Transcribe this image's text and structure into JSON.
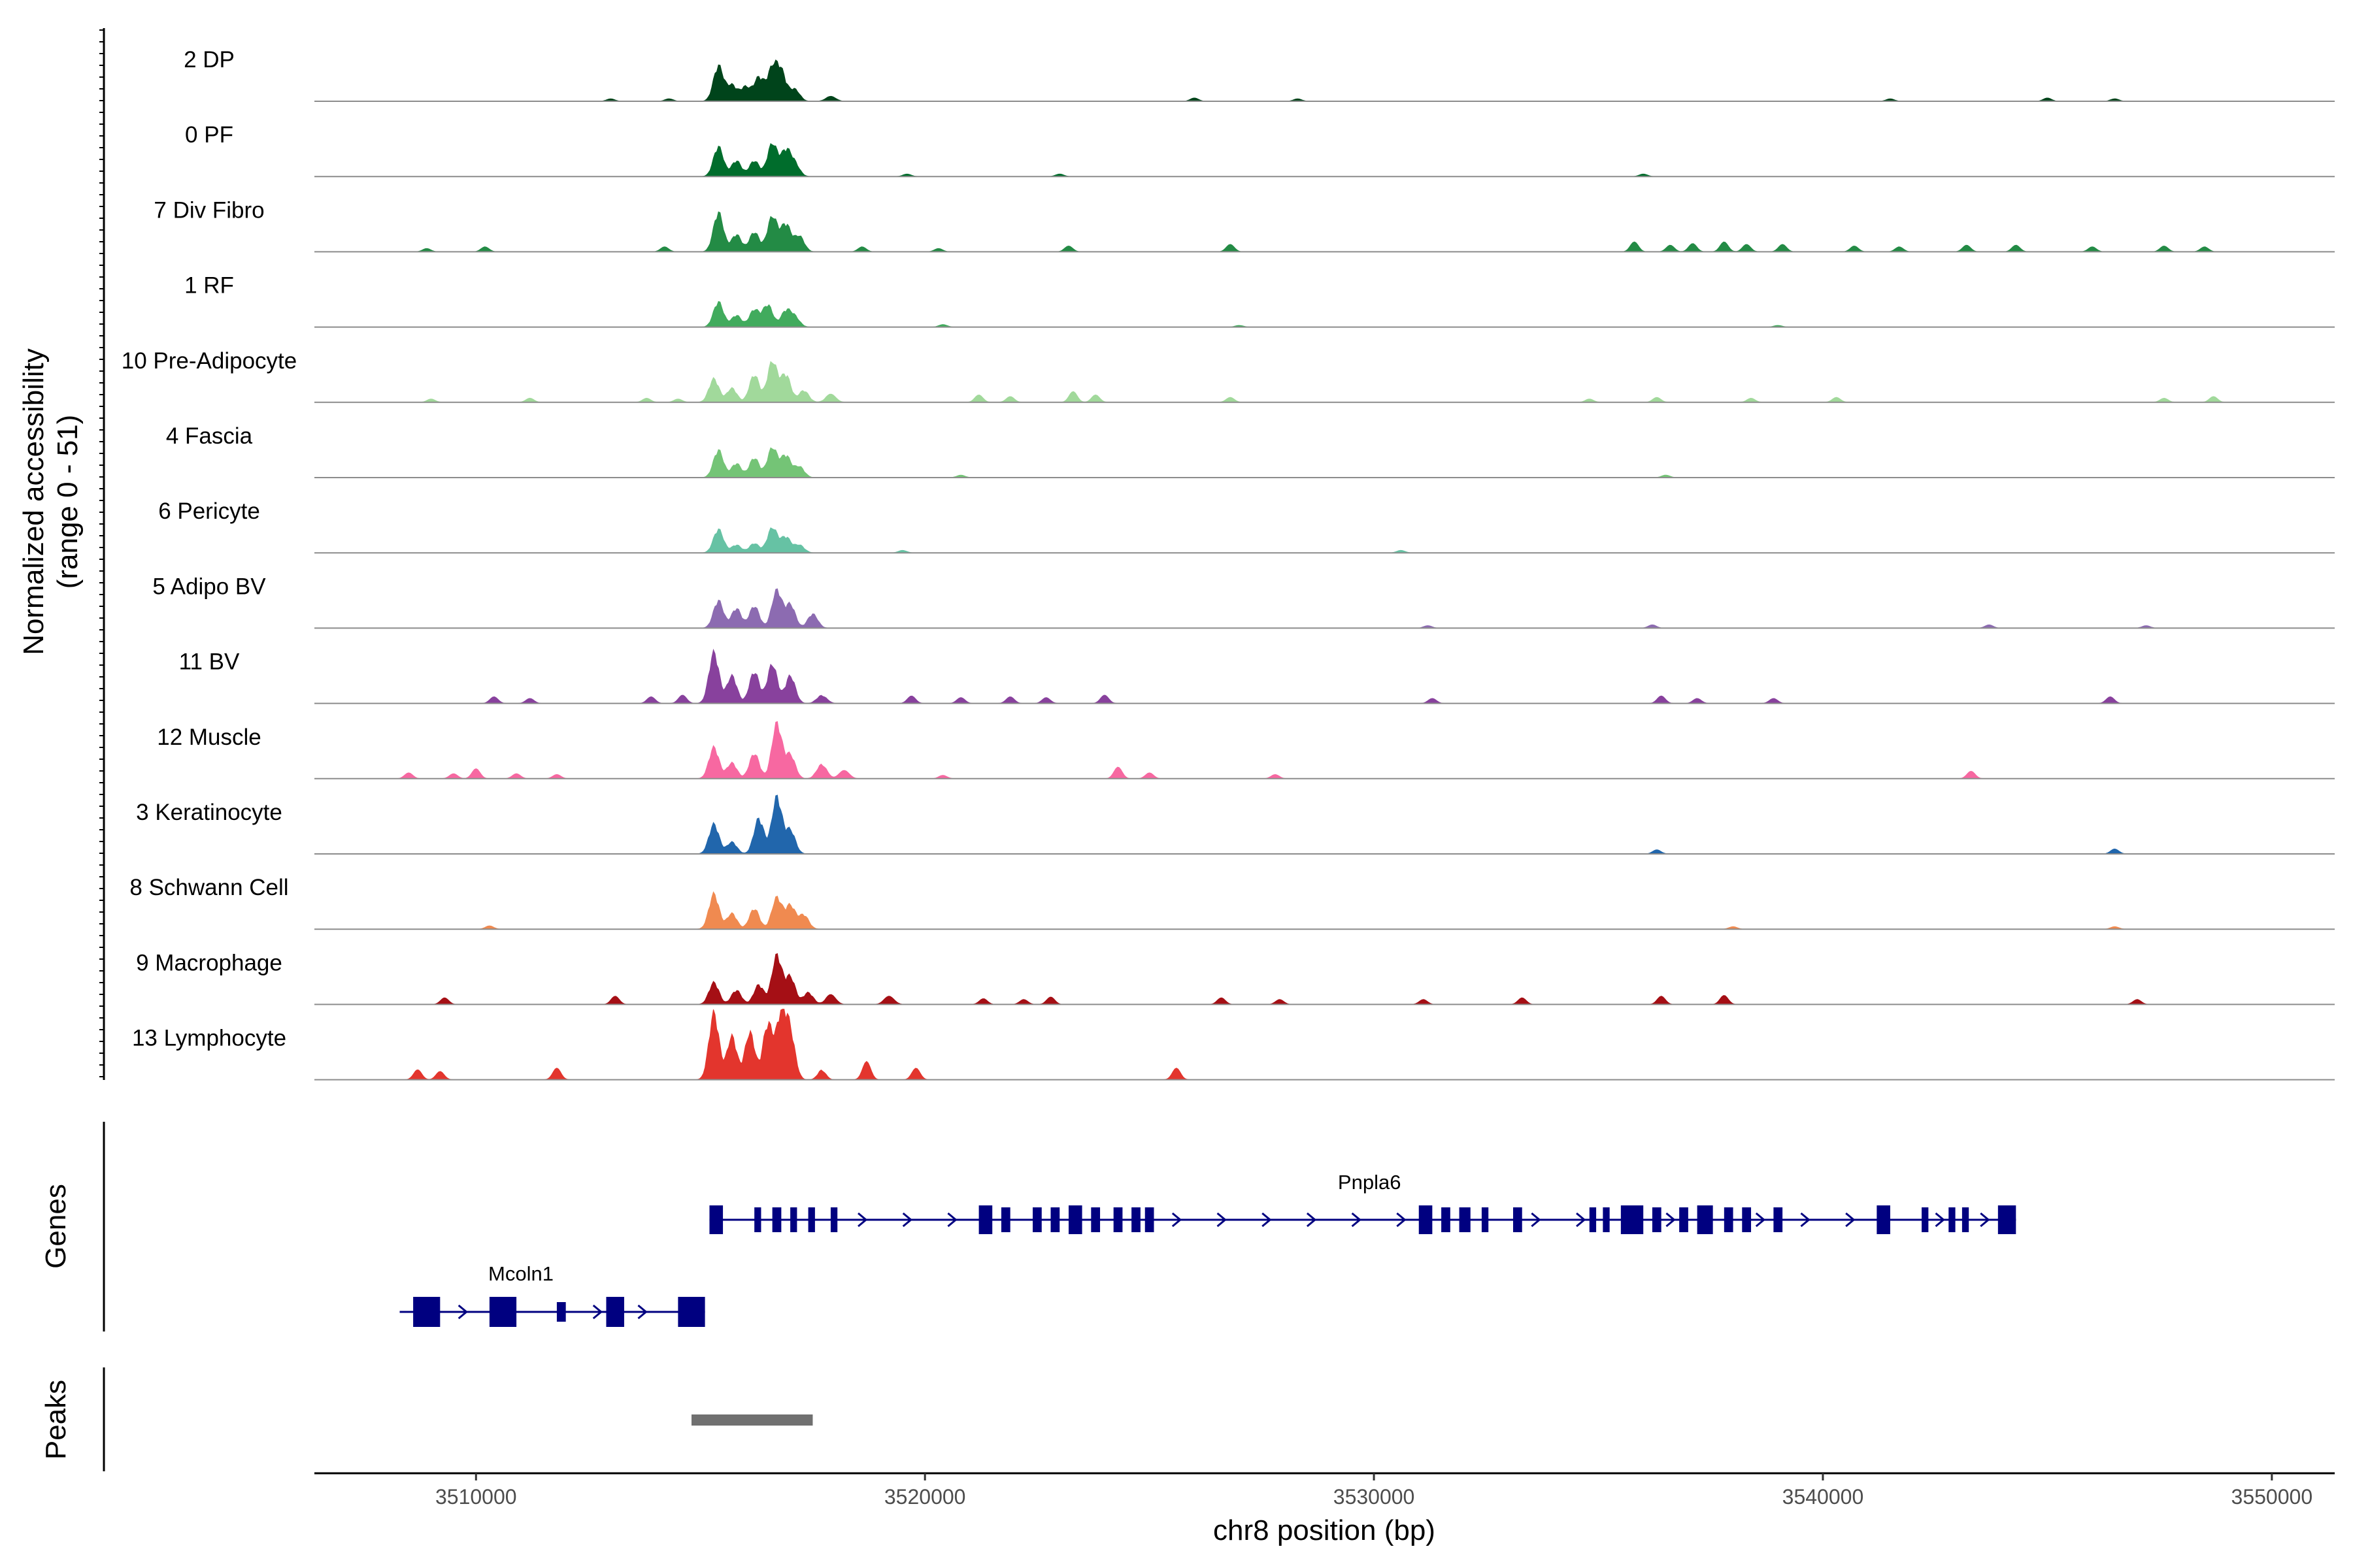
{
  "chart_data": {
    "type": "coverage",
    "title": "",
    "xlabel": "chr8 position (bp)",
    "ylabel": "Normalized accessibility",
    "ylabel_sub": "(range 0 - 51)",
    "y_range": [
      0,
      51
    ],
    "xlim": [
      3506400,
      3551400
    ],
    "x_ticks": [
      3510000,
      3520000,
      3530000,
      3540000,
      3550000
    ],
    "x_tick_labels": [
      "3510000",
      "3520000",
      "3530000",
      "3540000",
      "3550000"
    ],
    "panel_labels": {
      "genes": "Genes",
      "peaks": "Peaks"
    },
    "tracks": [
      {
        "name": "2 DP",
        "color": "#00441b",
        "peaks": [
          [
            3515400,
            45
          ],
          [
            3515700,
            20
          ],
          [
            3516000,
            18
          ],
          [
            3516300,
            30
          ],
          [
            3516600,
            40
          ],
          [
            3516800,
            35
          ],
          [
            3517100,
            15
          ],
          [
            3517900,
            6
          ]
        ],
        "bg": [
          [
            3513000,
            3
          ],
          [
            3514300,
            3
          ],
          [
            3526000,
            4
          ],
          [
            3528300,
            3
          ],
          [
            3541500,
            3
          ],
          [
            3545000,
            4
          ],
          [
            3546500,
            3
          ]
        ]
      },
      {
        "name": "0 PF",
        "color": "#006d2c",
        "peaks": [
          [
            3515400,
            38
          ],
          [
            3515800,
            20
          ],
          [
            3516200,
            20
          ],
          [
            3516600,
            42
          ],
          [
            3516900,
            32
          ],
          [
            3517100,
            15
          ]
        ],
        "bg": [
          [
            3519600,
            3
          ],
          [
            3523000,
            3
          ],
          [
            3536000,
            3
          ]
        ]
      },
      {
        "name": "7 Div Fibro",
        "color": "#238b45",
        "peaks": [
          [
            3515400,
            50
          ],
          [
            3515800,
            22
          ],
          [
            3516200,
            25
          ],
          [
            3516600,
            45
          ],
          [
            3516900,
            35
          ],
          [
            3517200,
            20
          ]
        ],
        "bg": [
          [
            3508900,
            4
          ],
          [
            3510200,
            6
          ],
          [
            3514200,
            6
          ],
          [
            3518600,
            6
          ],
          [
            3520300,
            4
          ],
          [
            3523200,
            7
          ],
          [
            3526800,
            9
          ],
          [
            3535800,
            12
          ],
          [
            3536600,
            8
          ],
          [
            3537100,
            10
          ],
          [
            3537800,
            12
          ],
          [
            3538300,
            9
          ],
          [
            3539100,
            9
          ],
          [
            3540700,
            7
          ],
          [
            3541700,
            6
          ],
          [
            3543200,
            8
          ],
          [
            3544300,
            8
          ],
          [
            3546000,
            6
          ],
          [
            3547600,
            7
          ],
          [
            3548500,
            6
          ]
        ]
      },
      {
        "name": "1 RF",
        "color": "#41ab5d",
        "peaks": [
          [
            3515400,
            32
          ],
          [
            3515800,
            15
          ],
          [
            3516200,
            22
          ],
          [
            3516500,
            28
          ],
          [
            3516900,
            20
          ],
          [
            3517100,
            12
          ]
        ],
        "bg": [
          [
            3520400,
            3
          ],
          [
            3527000,
            2
          ],
          [
            3539000,
            2
          ]
        ]
      },
      {
        "name": "10 Pre-Adipocyte",
        "color": "#a1d99b",
        "peaks": [
          [
            3515300,
            30
          ],
          [
            3515700,
            18
          ],
          [
            3516200,
            35
          ],
          [
            3516600,
            52
          ],
          [
            3516900,
            35
          ],
          [
            3517300,
            15
          ],
          [
            3517900,
            10
          ]
        ],
        "bg": [
          [
            3509000,
            4
          ],
          [
            3511200,
            5
          ],
          [
            3513800,
            5
          ],
          [
            3514500,
            4
          ],
          [
            3521200,
            9
          ],
          [
            3521900,
            7
          ],
          [
            3523300,
            13
          ],
          [
            3523800,
            9
          ],
          [
            3526800,
            6
          ],
          [
            3534800,
            4
          ],
          [
            3536300,
            6
          ],
          [
            3538400,
            5
          ],
          [
            3540300,
            6
          ],
          [
            3547600,
            5
          ],
          [
            3548700,
            7
          ]
        ]
      },
      {
        "name": "4 Fascia",
        "color": "#74c476",
        "peaks": [
          [
            3515400,
            35
          ],
          [
            3515800,
            18
          ],
          [
            3516200,
            25
          ],
          [
            3516600,
            38
          ],
          [
            3516900,
            28
          ],
          [
            3517200,
            14
          ]
        ],
        "bg": [
          [
            3520800,
            3
          ],
          [
            3536500,
            3
          ]
        ]
      },
      {
        "name": "6 Pericyte",
        "color": "#66c2a4",
        "peaks": [
          [
            3515400,
            30
          ],
          [
            3515800,
            10
          ],
          [
            3516200,
            12
          ],
          [
            3516600,
            32
          ],
          [
            3516900,
            20
          ],
          [
            3517200,
            10
          ]
        ],
        "bg": [
          [
            3519500,
            3
          ],
          [
            3530600,
            3
          ]
        ]
      },
      {
        "name": "5 Adipo BV",
        "color": "#8c6bb1",
        "peaks": [
          [
            3515400,
            35
          ],
          [
            3515800,
            25
          ],
          [
            3516200,
            28
          ],
          [
            3516700,
            48
          ],
          [
            3517000,
            30
          ],
          [
            3517500,
            18
          ]
        ],
        "bg": [
          [
            3531200,
            3
          ],
          [
            3536200,
            4
          ],
          [
            3543700,
            4
          ],
          [
            3547200,
            3
          ]
        ]
      },
      {
        "name": "11 BV",
        "color": "#88419d",
        "peaks": [
          [
            3515300,
            65
          ],
          [
            3515700,
            35
          ],
          [
            3516200,
            40
          ],
          [
            3516600,
            50
          ],
          [
            3517000,
            35
          ],
          [
            3517700,
            10
          ]
        ],
        "bg": [
          [
            3510400,
            8
          ],
          [
            3511200,
            6
          ],
          [
            3513900,
            8
          ],
          [
            3514600,
            10
          ],
          [
            3519700,
            9
          ],
          [
            3520800,
            7
          ],
          [
            3521900,
            8
          ],
          [
            3522700,
            7
          ],
          [
            3524000,
            10
          ],
          [
            3531300,
            6
          ],
          [
            3536400,
            9
          ],
          [
            3537200,
            6
          ],
          [
            3538900,
            6
          ],
          [
            3546400,
            8
          ]
        ]
      },
      {
        "name": "12 Muscle",
        "color": "#f768a1",
        "peaks": [
          [
            3515300,
            40
          ],
          [
            3515700,
            20
          ],
          [
            3516200,
            32
          ],
          [
            3516700,
            70
          ],
          [
            3517000,
            30
          ],
          [
            3517700,
            18
          ],
          [
            3518200,
            10
          ]
        ],
        "bg": [
          [
            3508500,
            7
          ],
          [
            3509500,
            6
          ],
          [
            3510000,
            12
          ],
          [
            3510900,
            6
          ],
          [
            3511800,
            5
          ],
          [
            3520400,
            4
          ],
          [
            3524300,
            14
          ],
          [
            3525000,
            7
          ],
          [
            3527800,
            5
          ],
          [
            3543300,
            9
          ]
        ]
      },
      {
        "name": "3 Keratinocyte",
        "color": "#2166ac",
        "peaks": [
          [
            3515300,
            38
          ],
          [
            3515700,
            15
          ],
          [
            3516300,
            45
          ],
          [
            3516700,
            72
          ],
          [
            3517000,
            30
          ]
        ],
        "bg": [
          [
            3536300,
            5
          ],
          [
            3546500,
            6
          ]
        ]
      },
      {
        "name": "8 Schwann Cell",
        "color": "#f08a50",
        "peaks": [
          [
            3515300,
            45
          ],
          [
            3515700,
            20
          ],
          [
            3516200,
            26
          ],
          [
            3516700,
            40
          ],
          [
            3517000,
            30
          ],
          [
            3517300,
            18
          ]
        ],
        "bg": [
          [
            3510300,
            4
          ],
          [
            3538000,
            3
          ],
          [
            3546500,
            3
          ]
        ]
      },
      {
        "name": "9 Macrophage",
        "color": "#a50f15",
        "peaks": [
          [
            3515300,
            28
          ],
          [
            3515800,
            18
          ],
          [
            3516300,
            25
          ],
          [
            3516700,
            62
          ],
          [
            3517000,
            35
          ],
          [
            3517400,
            15
          ],
          [
            3517900,
            12
          ],
          [
            3519200,
            10
          ]
        ],
        "bg": [
          [
            3509300,
            8
          ],
          [
            3513100,
            10
          ],
          [
            3521300,
            7
          ],
          [
            3522200,
            6
          ],
          [
            3522800,
            9
          ],
          [
            3526600,
            8
          ],
          [
            3527900,
            6
          ],
          [
            3531100,
            6
          ],
          [
            3533300,
            8
          ],
          [
            3536400,
            10
          ],
          [
            3537800,
            11
          ],
          [
            3547000,
            6
          ]
        ]
      },
      {
        "name": "13 Lymphocyte",
        "color": "#e3352d",
        "peaks": [
          [
            3515300,
            85
          ],
          [
            3515700,
            55
          ],
          [
            3516100,
            60
          ],
          [
            3516500,
            70
          ],
          [
            3516800,
            80
          ],
          [
            3517000,
            55
          ]
        ],
        "bg": [
          [
            3508700,
            12
          ],
          [
            3509200,
            10
          ],
          [
            3511800,
            14
          ],
          [
            3517700,
            12
          ],
          [
            3518700,
            22
          ],
          [
            3519800,
            14
          ],
          [
            3525600,
            14
          ]
        ]
      }
    ],
    "genes": [
      {
        "name": "Pnpla6",
        "color": "#000080",
        "strand": "+",
        "start": 3515200,
        "end": 3544300,
        "exons": [
          [
            3515200,
            3515500
          ],
          [
            3516200,
            3516350
          ],
          [
            3516600,
            3516800
          ],
          [
            3517000,
            3517150
          ],
          [
            3517400,
            3517550
          ],
          [
            3517900,
            3518050
          ],
          [
            3521200,
            3521500
          ],
          [
            3521700,
            3521900
          ],
          [
            3522400,
            3522600
          ],
          [
            3522800,
            3523000
          ],
          [
            3523200,
            3523500
          ],
          [
            3523700,
            3523900
          ],
          [
            3524200,
            3524400
          ],
          [
            3524600,
            3524800
          ],
          [
            3524900,
            3525100
          ],
          [
            3531000,
            3531300
          ],
          [
            3531500,
            3531700
          ],
          [
            3531900,
            3532150
          ],
          [
            3532400,
            3532550
          ],
          [
            3533100,
            3533300
          ],
          [
            3534800,
            3534950
          ],
          [
            3535100,
            3535250
          ],
          [
            3535500,
            3536000
          ],
          [
            3536200,
            3536400
          ],
          [
            3536800,
            3537000
          ],
          [
            3537200,
            3537550
          ],
          [
            3537800,
            3538000
          ],
          [
            3538200,
            3538400
          ],
          [
            3538900,
            3539100
          ],
          [
            3541200,
            3541500
          ],
          [
            3542200,
            3542350
          ],
          [
            3542800,
            3542950
          ],
          [
            3543100,
            3543250
          ],
          [
            3543900,
            3544300
          ]
        ]
      },
      {
        "name": "Mcoln1",
        "color": "#000080",
        "strand": "+",
        "start": 3508300,
        "end": 3515100,
        "exons": [
          [
            3508600,
            3509200
          ],
          [
            3510300,
            3510900
          ],
          [
            3511800,
            3512000
          ],
          [
            3512900,
            3513300
          ],
          [
            3514500,
            3515100
          ]
        ]
      }
    ],
    "peaks": [
      {
        "start": 3514800,
        "end": 3517500,
        "color": "#707070"
      }
    ]
  }
}
